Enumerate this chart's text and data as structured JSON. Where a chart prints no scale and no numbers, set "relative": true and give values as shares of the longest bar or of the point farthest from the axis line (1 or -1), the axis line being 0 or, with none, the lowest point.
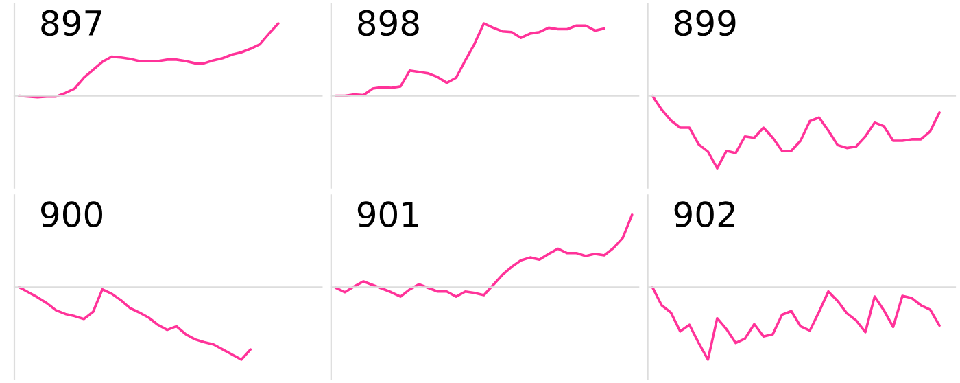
{
  "chart_data": [
    {
      "type": "line",
      "title": "897",
      "relative": true,
      "categories": [
        null,
        null,
        null,
        null,
        null,
        null,
        null,
        null,
        null,
        null,
        null,
        null,
        null,
        null,
        null,
        null,
        null,
        null,
        null,
        null,
        null,
        null,
        null,
        null,
        null,
        null,
        null,
        null,
        null,
        null,
        null,
        null,
        null
      ],
      "series": [
        {
          "color": "#ff3399",
          "values": [
            0,
            -0.01,
            -0.02,
            -0.01,
            -0.01,
            0.04,
            0.1,
            0.25,
            0.36,
            0.47,
            0.54,
            0.53,
            0.51,
            0.48,
            0.48,
            0.48,
            0.5,
            0.5,
            0.48,
            0.45,
            0.45,
            0.49,
            0.52,
            0.57,
            0.6,
            0.65,
            0.71,
            0.86,
            1.0,
            null,
            null,
            null,
            null
          ]
        }
      ]
    },
    {
      "type": "line",
      "title": "898",
      "relative": true,
      "categories": [
        null,
        null,
        null,
        null,
        null,
        null,
        null,
        null,
        null,
        null,
        null,
        null,
        null,
        null,
        null,
        null,
        null,
        null,
        null,
        null,
        null,
        null,
        null,
        null,
        null,
        null,
        null,
        null,
        null,
        null,
        null,
        null,
        null
      ],
      "series": [
        {
          "color": "#ff3399",
          "values": [
            0,
            0,
            0.02,
            0.01,
            0.1,
            0.12,
            0.11,
            0.13,
            0.35,
            0.33,
            0.31,
            0.26,
            0.18,
            0.25,
            0.49,
            0.72,
            1.0,
            0.94,
            0.89,
            0.88,
            0.8,
            0.86,
            0.88,
            0.94,
            0.92,
            0.92,
            0.97,
            0.97,
            0.9,
            0.93,
            null,
            null,
            null
          ]
        }
      ]
    },
    {
      "type": "line",
      "title": "899",
      "relative": true,
      "categories": [
        null,
        null,
        null,
        null,
        null,
        null,
        null,
        null,
        null,
        null,
        null,
        null,
        null,
        null,
        null,
        null,
        null,
        null,
        null,
        null,
        null,
        null,
        null,
        null,
        null,
        null,
        null,
        null,
        null,
        null,
        null,
        null,
        null
      ],
      "series": [
        {
          "color": "#ff3399",
          "values": [
            0,
            -0.19,
            -0.34,
            -0.44,
            -0.44,
            -0.67,
            -0.77,
            -1.0,
            -0.76,
            -0.79,
            -0.56,
            -0.58,
            -0.44,
            -0.58,
            -0.76,
            -0.76,
            -0.62,
            -0.35,
            -0.3,
            -0.48,
            -0.68,
            -0.72,
            -0.7,
            -0.56,
            -0.37,
            -0.42,
            -0.62,
            -0.62,
            -0.6,
            -0.6,
            -0.49,
            -0.23,
            null
          ]
        }
      ]
    },
    {
      "type": "line",
      "title": "900",
      "relative": true,
      "categories": [
        null,
        null,
        null,
        null,
        null,
        null,
        null,
        null,
        null,
        null,
        null,
        null,
        null,
        null,
        null,
        null,
        null,
        null,
        null,
        null,
        null,
        null,
        null,
        null,
        null,
        null,
        null,
        null,
        null,
        null,
        null,
        null,
        null
      ],
      "series": [
        {
          "color": "#ff3399",
          "values": [
            0,
            -0.07,
            -0.14,
            -0.22,
            -0.32,
            -0.37,
            -0.4,
            -0.44,
            -0.34,
            -0.03,
            -0.09,
            -0.18,
            -0.29,
            -0.35,
            -0.42,
            -0.52,
            -0.59,
            -0.54,
            -0.65,
            -0.72,
            -0.76,
            -0.79,
            -0.86,
            -0.93,
            -1.0,
            -0.86,
            null,
            null,
            null,
            null,
            null,
            null,
            null
          ]
        }
      ]
    },
    {
      "type": "line",
      "title": "901",
      "relative": true,
      "categories": [
        null,
        null,
        null,
        null,
        null,
        null,
        null,
        null,
        null,
        null,
        null,
        null,
        null,
        null,
        null,
        null,
        null,
        null,
        null,
        null,
        null,
        null,
        null,
        null,
        null,
        null,
        null,
        null,
        null,
        null,
        null,
        null,
        null
      ],
      "series": [
        {
          "color": "#ff3399",
          "values": [
            -0.01,
            -0.07,
            0.01,
            0.08,
            0.03,
            -0.02,
            -0.07,
            -0.13,
            -0.03,
            0.04,
            -0.01,
            -0.06,
            -0.06,
            -0.13,
            -0.06,
            -0.08,
            -0.11,
            0.03,
            0.17,
            0.28,
            0.37,
            0.41,
            0.38,
            0.46,
            0.53,
            0.47,
            0.47,
            0.43,
            0.46,
            0.44,
            0.54,
            0.68,
            1.0
          ]
        }
      ]
    },
    {
      "type": "line",
      "title": "902",
      "relative": true,
      "categories": [
        null,
        null,
        null,
        null,
        null,
        null,
        null,
        null,
        null,
        null,
        null,
        null,
        null,
        null,
        null,
        null,
        null,
        null,
        null,
        null,
        null,
        null,
        null,
        null,
        null,
        null,
        null,
        null,
        null,
        null,
        null,
        null,
        null
      ],
      "series": [
        {
          "color": "#ff3399",
          "values": [
            0,
            -0.25,
            -0.35,
            -0.61,
            -0.52,
            -0.77,
            -1.0,
            -0.43,
            -0.58,
            -0.77,
            -0.71,
            -0.51,
            -0.68,
            -0.65,
            -0.38,
            -0.33,
            -0.54,
            -0.6,
            -0.34,
            -0.06,
            -0.19,
            -0.36,
            -0.46,
            -0.62,
            -0.13,
            -0.32,
            -0.55,
            -0.12,
            -0.15,
            -0.25,
            -0.31,
            -0.53,
            null
          ]
        }
      ]
    }
  ]
}
